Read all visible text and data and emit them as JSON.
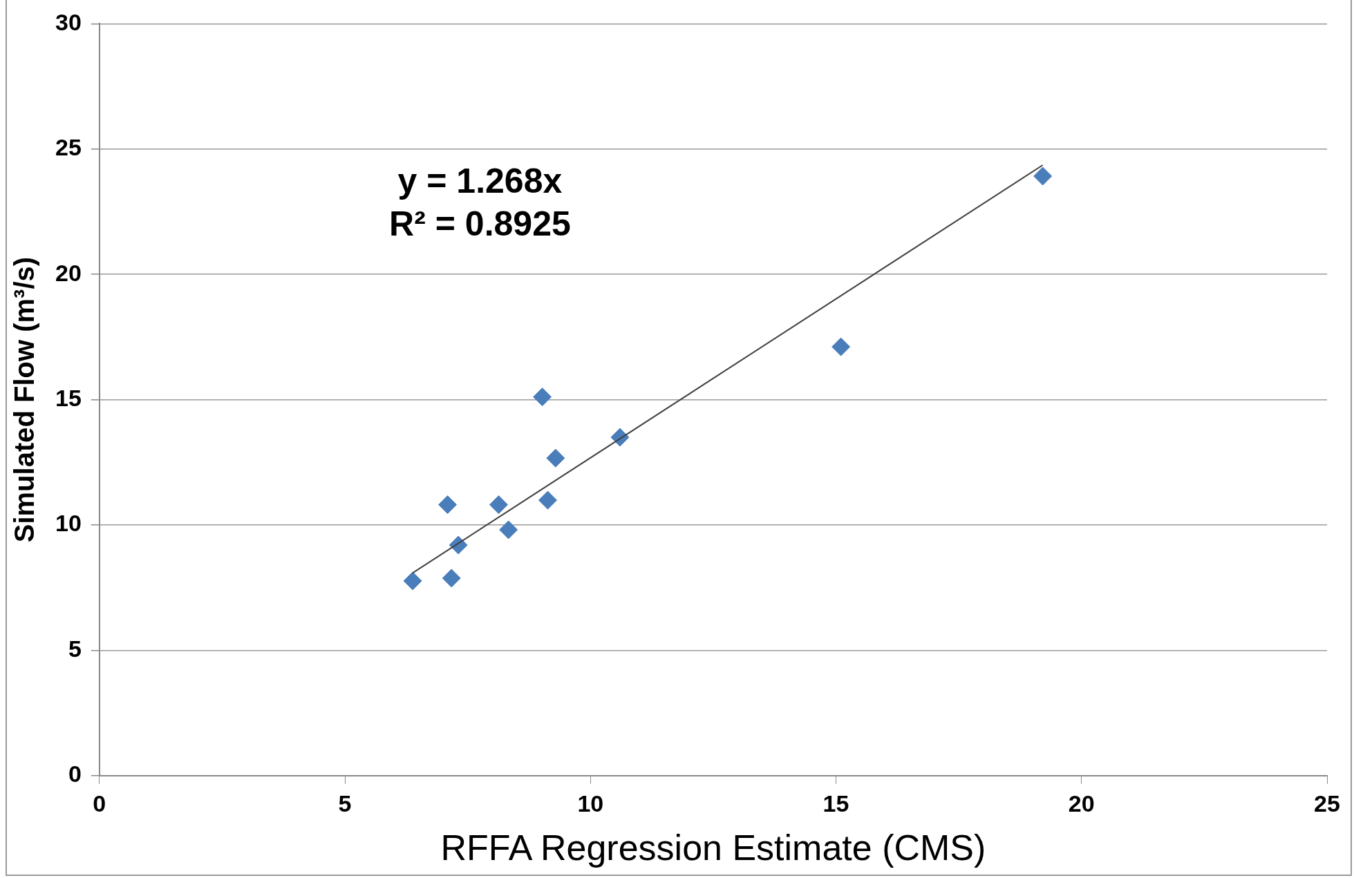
{
  "chart_data": {
    "type": "scatter",
    "xlabel": "RFFA Regression Estimate (CMS)",
    "ylabel": "Simulated Flow (m³/s)",
    "annotations": [
      "y = 1.268x",
      "R² = 0.8925"
    ],
    "xlim": [
      0,
      25
    ],
    "xticks": [
      0,
      5,
      10,
      15,
      20,
      25
    ],
    "ylim": [
      0,
      30
    ],
    "yticks": [
      0,
      5,
      10,
      15,
      20,
      25,
      30
    ],
    "grid": "y",
    "legend": false,
    "x": [
      6.38,
      7.17,
      7.09,
      7.31,
      8.13,
      8.33,
      9.02,
      9.13,
      9.29,
      10.6,
      15.1,
      19.21
    ],
    "series": [
      {
        "type": "scatter",
        "marker": "diamond",
        "color": "#4a7ebb",
        "values": [
          7.77,
          7.88,
          10.81,
          9.2,
          10.81,
          9.81,
          15.11,
          10.99,
          12.67,
          13.5,
          17.11,
          23.92
        ]
      },
      {
        "type": "line",
        "marker": "none",
        "color": "#404040",
        "x": [
          6.38,
          19.21
        ],
        "values": [
          8.09,
          24.36
        ]
      }
    ]
  }
}
